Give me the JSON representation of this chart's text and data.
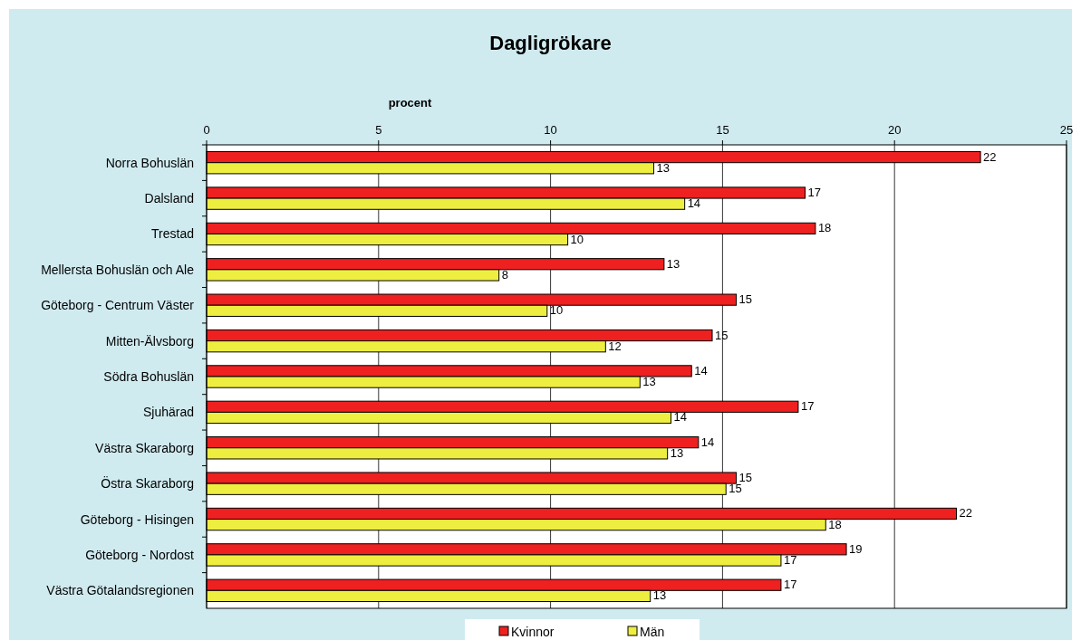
{
  "chart_data": {
    "type": "bar",
    "orientation": "horizontal",
    "title": "Dagligrökare",
    "xlabel": "procent",
    "categories": [
      "Norra Bohuslän",
      "Dalsland",
      "Trestad",
      "Mellersta Bohuslän och Ale",
      "Göteborg - Centrum Väster",
      "Mitten-Älvsborg",
      "Södra Bohuslän",
      "Sjuhärad",
      "Västra Skaraborg",
      "Östra Skaraborg",
      "Göteborg - Hisingen",
      "Göteborg - Nordost",
      "Västra Götalandsregionen"
    ],
    "series": [
      {
        "name": "Kvinnor",
        "color": "#ee2020",
        "values": [
          22.5,
          17.4,
          17.7,
          13.3,
          15.4,
          14.7,
          14.1,
          17.2,
          14.3,
          15.4,
          21.8,
          18.6,
          16.7
        ],
        "value_labels": [
          "22",
          "17",
          "18",
          "13",
          "15",
          "15",
          "14",
          "17",
          "14",
          "15",
          "22",
          "19",
          "17"
        ]
      },
      {
        "name": "Män",
        "color": "#eeee40",
        "values": [
          13.0,
          13.9,
          10.5,
          8.5,
          9.9,
          11.6,
          12.6,
          13.5,
          13.4,
          15.1,
          18.0,
          16.7,
          12.9
        ],
        "value_labels": [
          "13",
          "14",
          "10",
          "8",
          "10",
          "12",
          "13",
          "14",
          "13",
          "15",
          "18",
          "17",
          "13"
        ]
      }
    ],
    "xlim": [
      0,
      25
    ],
    "xticks": [
      0,
      5,
      10,
      15,
      20,
      25
    ],
    "grid": "x",
    "legend": "bottom"
  }
}
